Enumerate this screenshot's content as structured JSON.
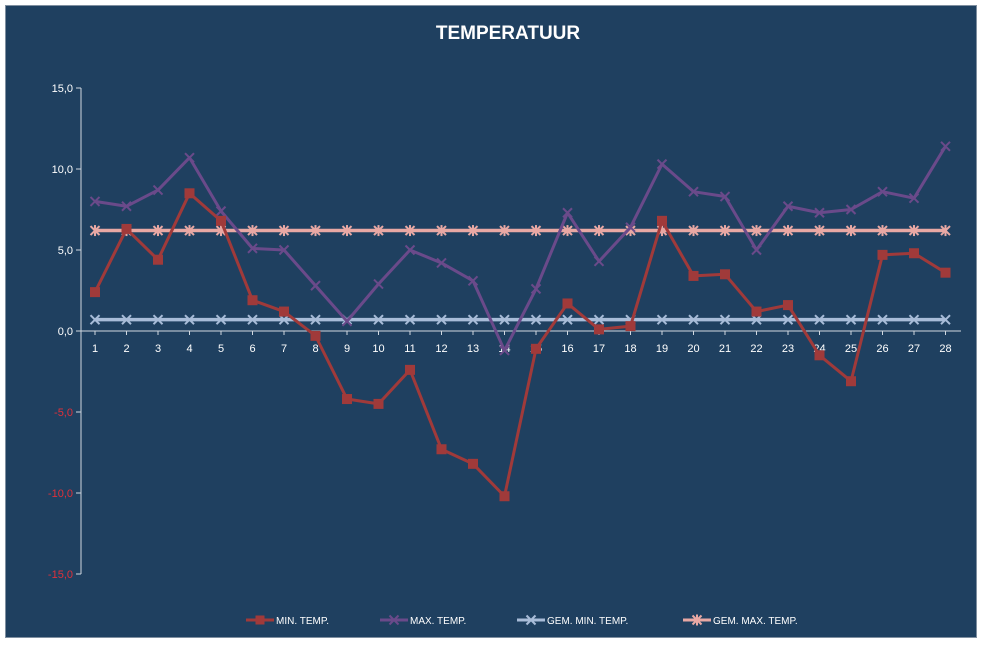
{
  "chart_data": {
    "type": "line",
    "title": "TEMPERATUUR",
    "xlabel": "",
    "ylabel": "",
    "categories": [
      "1",
      "2",
      "3",
      "4",
      "5",
      "6",
      "7",
      "8",
      "9",
      "10",
      "11",
      "12",
      "13",
      "14",
      "15",
      "16",
      "17",
      "18",
      "19",
      "20",
      "21",
      "22",
      "23",
      "24",
      "25",
      "26",
      "27",
      "28"
    ],
    "ylim": [
      -15,
      15
    ],
    "yticks": [
      -15,
      -10,
      -5,
      0,
      5,
      10,
      15
    ],
    "ytick_labels": [
      "-15,0",
      "-10,0",
      "-5,0",
      "0,0",
      "5,0",
      "10,0",
      "15,0"
    ],
    "grid": false,
    "legend_position": "bottom",
    "series": [
      {
        "name": "MIN. TEMP.",
        "color": "#a03a3a",
        "marker": "square",
        "values": [
          2.4,
          6.3,
          4.4,
          8.5,
          6.8,
          1.9,
          1.2,
          -0.3,
          -4.2,
          -4.5,
          -2.4,
          -7.3,
          -8.2,
          -10.2,
          -1.1,
          1.7,
          0.1,
          0.3,
          6.8,
          3.4,
          3.5,
          1.2,
          1.6,
          -1.5,
          -3.1,
          4.7,
          4.8,
          3.6
        ]
      },
      {
        "name": "MAX. TEMP.",
        "color": "#6a4a8a",
        "marker": "cross",
        "values": [
          8.0,
          7.7,
          8.7,
          10.7,
          7.4,
          5.1,
          5.0,
          2.8,
          0.6,
          2.9,
          5.0,
          4.2,
          3.1,
          -1.2,
          2.6,
          7.3,
          4.3,
          6.4,
          10.3,
          8.6,
          8.3,
          5.0,
          7.7,
          7.3,
          7.5,
          8.6,
          8.2,
          11.4
        ]
      },
      {
        "name": "GEM. MIN. TEMP.",
        "color": "#a8bcd8",
        "marker": "x",
        "values": [
          0.7,
          0.7,
          0.7,
          0.7,
          0.7,
          0.7,
          0.7,
          0.7,
          0.7,
          0.7,
          0.7,
          0.7,
          0.7,
          0.7,
          0.7,
          0.7,
          0.7,
          0.7,
          0.7,
          0.7,
          0.7,
          0.7,
          0.7,
          0.7,
          0.7,
          0.7,
          0.7,
          0.7
        ]
      },
      {
        "name": "GEM. MAX. TEMP.",
        "color": "#e8a8a4",
        "marker": "star",
        "values": [
          6.2,
          6.2,
          6.2,
          6.2,
          6.2,
          6.2,
          6.2,
          6.2,
          6.2,
          6.2,
          6.2,
          6.2,
          6.2,
          6.2,
          6.2,
          6.2,
          6.2,
          6.2,
          6.2,
          6.2,
          6.2,
          6.2,
          6.2,
          6.2,
          6.2,
          6.2,
          6.2,
          6.2
        ]
      }
    ],
    "colors": {
      "background": "#1f4060",
      "axis": "#d0d8e0",
      "positive_tick_label": "#ffffff",
      "negative_tick_label": "#e0303a"
    }
  }
}
